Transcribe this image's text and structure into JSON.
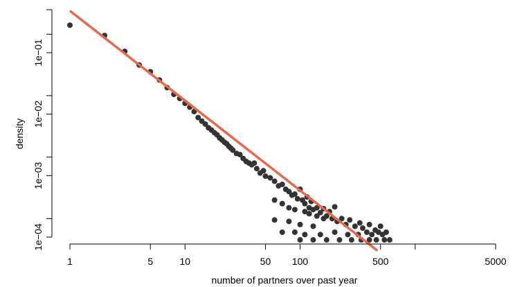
{
  "chart_data": {
    "type": "scatter",
    "scale": {
      "x": "log10",
      "y": "log10"
    },
    "xlabel": "number of partners over past year",
    "ylabel": "density",
    "x_ticks": [
      {
        "value": 1,
        "label": "1"
      },
      {
        "value": 5,
        "label": "5"
      },
      {
        "value": 10,
        "label": "10"
      },
      {
        "value": 50,
        "label": "50"
      },
      {
        "value": 100,
        "label": "100"
      },
      {
        "value": 500,
        "label": "500"
      },
      {
        "value": 1000,
        "label": ""
      },
      {
        "value": 5000,
        "label": "5000"
      }
    ],
    "y_ticks": [
      {
        "value": 0.0001,
        "label": "1e−04"
      },
      {
        "value": 0.0002,
        "label": ""
      },
      {
        "value": 0.001,
        "label": "1e−03"
      },
      {
        "value": 0.002,
        "label": ""
      },
      {
        "value": 0.01,
        "label": "1e−02"
      },
      {
        "value": 0.02,
        "label": ""
      },
      {
        "value": 0.1,
        "label": "1e−01"
      },
      {
        "value": 0.2,
        "label": ""
      },
      {
        "value": 0.5,
        "label": ""
      }
    ],
    "xlim": [
      1,
      5000
    ],
    "ylim": [
      6e-05,
      0.6
    ],
    "grid": false,
    "colors": {
      "points": "#333333",
      "fit_line": "#e8694a"
    },
    "points": [
      [
        1,
        0.28
      ],
      [
        2,
        0.19
      ],
      [
        3,
        0.105
      ],
      [
        4,
        0.063
      ],
      [
        5,
        0.049
      ],
      [
        6,
        0.036
      ],
      [
        7,
        0.027
      ],
      [
        8,
        0.021
      ],
      [
        9,
        0.018
      ],
      [
        10,
        0.015
      ],
      [
        11,
        0.013
      ],
      [
        12,
        0.011
      ],
      [
        13,
        0.0088
      ],
      [
        14,
        0.0077
      ],
      [
        15,
        0.0069
      ],
      [
        16,
        0.006
      ],
      [
        17,
        0.0055
      ],
      [
        18,
        0.005
      ],
      [
        19,
        0.0046
      ],
      [
        20,
        0.0041
      ],
      [
        21,
        0.0038
      ],
      [
        22,
        0.0035
      ],
      [
        23,
        0.0033
      ],
      [
        24,
        0.003
      ],
      [
        25,
        0.0028
      ],
      [
        26,
        0.0026
      ],
      [
        28,
        0.0023
      ],
      [
        30,
        0.0022
      ],
      [
        32,
        0.0019
      ],
      [
        34,
        0.0017
      ],
      [
        36,
        0.0016
      ],
      [
        38,
        0.0015
      ],
      [
        40,
        0.0016
      ],
      [
        42,
        0.0013
      ],
      [
        45,
        0.0011
      ],
      [
        48,
        0.0012
      ],
      [
        50,
        0.00098
      ],
      [
        55,
        0.00092
      ],
      [
        60,
        0.00081
      ],
      [
        65,
        0.00068
      ],
      [
        70,
        0.00072
      ],
      [
        75,
        0.0006
      ],
      [
        80,
        0.00055
      ],
      [
        85,
        0.00048
      ],
      [
        90,
        0.0005
      ],
      [
        95,
        0.00042
      ],
      [
        100,
        0.0006
      ],
      [
        105,
        0.0004
      ],
      [
        110,
        0.00035
      ],
      [
        115,
        0.00045
      ],
      [
        120,
        0.0003
      ],
      [
        125,
        0.00038
      ],
      [
        130,
        0.00028
      ],
      [
        140,
        0.0003
      ],
      [
        150,
        0.00025
      ],
      [
        160,
        0.00029
      ],
      [
        170,
        0.00022
      ],
      [
        180,
        0.00026
      ],
      [
        190,
        0.0002
      ],
      [
        200,
        0.00031
      ],
      [
        210,
        0.00018
      ],
      [
        230,
        0.0002
      ],
      [
        250,
        0.00016
      ],
      [
        270,
        0.00019
      ],
      [
        300,
        0.00015
      ],
      [
        330,
        0.00017
      ],
      [
        350,
        0.00014
      ],
      [
        400,
        0.00016
      ],
      [
        450,
        0.00013
      ],
      [
        500,
        0.00015
      ],
      [
        60,
        0.0004
      ],
      [
        70,
        0.00035
      ],
      [
        80,
        0.0003
      ],
      [
        90,
        0.00028
      ],
      [
        110,
        0.00026
      ],
      [
        120,
        0.00024
      ],
      [
        140,
        0.00022
      ],
      [
        160,
        0.0002
      ],
      [
        60,
        0.00019
      ],
      [
        80,
        0.00018
      ],
      [
        100,
        0.00016
      ],
      [
        130,
        0.00015
      ],
      [
        70,
        0.00012
      ],
      [
        90,
        0.00012
      ],
      [
        110,
        0.00011
      ],
      [
        150,
        0.00011
      ],
      [
        200,
        0.00012
      ],
      [
        260,
        0.00011
      ],
      [
        320,
        0.00011
      ],
      [
        380,
        0.00012
      ],
      [
        420,
        0.00011
      ],
      [
        480,
        0.00012
      ],
      [
        520,
        0.00011
      ],
      [
        560,
        0.00012
      ],
      [
        100,
        9e-05
      ],
      [
        130,
        9e-05
      ],
      [
        170,
        9e-05
      ],
      [
        220,
        9e-05
      ],
      [
        280,
        9e-05
      ],
      [
        340,
        9e-05
      ],
      [
        400,
        9e-05
      ],
      [
        460,
        9e-05
      ],
      [
        540,
        9e-05
      ],
      [
        600,
        9e-05
      ],
      [
        70,
        7e-05
      ],
      [
        85,
        7e-05
      ],
      [
        110,
        7e-05
      ],
      [
        140,
        7e-05
      ],
      [
        180,
        7e-05
      ],
      [
        230,
        7e-05
      ],
      [
        290,
        7e-05
      ],
      [
        350,
        7e-05
      ],
      [
        420,
        7e-05
      ],
      [
        500,
        7e-05
      ],
      [
        580,
        7e-05
      ],
      [
        640,
        7e-05
      ]
    ],
    "fit_line": {
      "x": [
        1,
        470
      ],
      "y": [
        0.48,
        6e-05
      ]
    }
  }
}
